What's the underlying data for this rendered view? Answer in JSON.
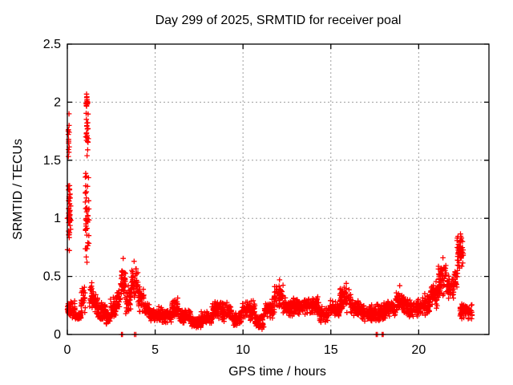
{
  "chart_data": {
    "type": "scatter",
    "title": "Day 299 of 2025, SRMTID for receiver poal",
    "xlabel": "GPS time / hours",
    "ylabel": "SRMTID / TECUs",
    "xlim": [
      0,
      24
    ],
    "ylim": [
      0,
      2.5
    ],
    "xtick_values": [
      0,
      5,
      10,
      15,
      20
    ],
    "xtick_labels": [
      "0",
      "5",
      "10",
      "15",
      "20"
    ],
    "ytick_values": [
      0,
      0.5,
      1,
      1.5,
      2,
      2.5
    ],
    "ytick_labels": [
      "0",
      "0.5",
      "1",
      "1.5",
      "2",
      "2.5"
    ],
    "grid": true,
    "grid_color": "#9e9e9e",
    "marker": "plus",
    "marker_color": "#ff0000",
    "border_color": "#000000",
    "background": "#ffffff",
    "legend": "none",
    "seed": 2025299,
    "segments_format": [
      "t_start_hours",
      "t_end_hours",
      "v_min_TECUs",
      "v_max_TECUs",
      "n_points"
    ],
    "band_segments": [
      [
        0.05,
        0.13,
        0.72,
        1.38,
        22
      ],
      [
        0.05,
        0.12,
        1.4,
        1.92,
        10
      ],
      [
        0.13,
        0.2,
        0.78,
        1.3,
        14
      ],
      [
        0.07,
        0.14,
        0.93,
        1.1,
        12
      ],
      [
        1.02,
        1.24,
        0.55,
        1.45,
        42
      ],
      [
        1.04,
        1.2,
        1.45,
        1.95,
        22
      ],
      [
        1.06,
        1.17,
        1.93,
        2.06,
        12
      ],
      [
        0.0,
        0.45,
        0.13,
        0.3,
        55
      ],
      [
        0.45,
        0.78,
        0.11,
        0.2,
        38
      ],
      [
        0.78,
        1.02,
        0.17,
        0.42,
        30
      ],
      [
        1.26,
        1.5,
        0.22,
        0.45,
        26
      ],
      [
        1.5,
        1.72,
        0.16,
        0.35,
        26
      ],
      [
        1.72,
        2.2,
        0.12,
        0.28,
        62
      ],
      [
        2.2,
        2.45,
        0.08,
        0.2,
        30
      ],
      [
        2.45,
        2.78,
        0.14,
        0.33,
        40
      ],
      [
        2.78,
        3.02,
        0.18,
        0.4,
        30
      ],
      [
        3.02,
        3.32,
        0.28,
        0.62,
        45
      ],
      [
        3.32,
        3.62,
        0.15,
        0.45,
        38
      ],
      [
        3.62,
        4.02,
        0.28,
        0.6,
        45
      ],
      [
        4.02,
        4.38,
        0.16,
        0.42,
        40
      ],
      [
        4.38,
        4.68,
        0.13,
        0.3,
        36
      ],
      [
        4.68,
        5.42,
        0.1,
        0.24,
        85
      ],
      [
        5.42,
        5.92,
        0.1,
        0.22,
        58
      ],
      [
        5.92,
        6.38,
        0.13,
        0.32,
        52
      ],
      [
        6.38,
        7.02,
        0.09,
        0.22,
        72
      ],
      [
        7.02,
        7.62,
        0.05,
        0.16,
        66
      ],
      [
        7.62,
        8.22,
        0.08,
        0.2,
        66
      ],
      [
        8.22,
        8.78,
        0.12,
        0.3,
        62
      ],
      [
        8.78,
        9.38,
        0.1,
        0.28,
        66
      ],
      [
        9.38,
        9.92,
        0.06,
        0.2,
        60
      ],
      [
        9.92,
        10.68,
        0.12,
        0.3,
        82
      ],
      [
        10.68,
        11.22,
        0.04,
        0.18,
        60
      ],
      [
        11.22,
        11.78,
        0.12,
        0.32,
        62
      ],
      [
        11.78,
        12.28,
        0.2,
        0.45,
        55
      ],
      [
        12.28,
        13.02,
        0.15,
        0.33,
        80
      ],
      [
        13.02,
        14.32,
        0.16,
        0.33,
        140
      ],
      [
        14.32,
        14.88,
        0.1,
        0.25,
        62
      ],
      [
        14.88,
        15.52,
        0.14,
        0.3,
        70
      ],
      [
        15.52,
        16.18,
        0.18,
        0.42,
        72
      ],
      [
        16.18,
        16.88,
        0.13,
        0.3,
        76
      ],
      [
        16.88,
        17.58,
        0.1,
        0.26,
        76
      ],
      [
        17.58,
        18.12,
        0.1,
        0.28,
        60
      ],
      [
        18.12,
        18.68,
        0.13,
        0.3,
        60
      ],
      [
        18.68,
        19.18,
        0.18,
        0.4,
        56
      ],
      [
        19.18,
        20.12,
        0.14,
        0.32,
        100
      ],
      [
        20.12,
        20.68,
        0.16,
        0.38,
        62
      ],
      [
        20.68,
        21.12,
        0.22,
        0.48,
        52
      ],
      [
        21.12,
        21.58,
        0.3,
        0.64,
        50
      ],
      [
        21.58,
        22.02,
        0.28,
        0.52,
        46
      ],
      [
        22.02,
        22.22,
        0.34,
        0.58,
        20
      ],
      [
        22.18,
        22.55,
        0.55,
        0.86,
        55
      ],
      [
        22.35,
        23.05,
        0.12,
        0.28,
        72
      ]
    ],
    "zero_points": [
      3.08,
      3.14,
      3.82,
      3.9,
      17.58,
      17.65,
      17.92,
      17.98
    ],
    "extra_points": [
      [
        0.0,
        1.0
      ],
      [
        0.01,
        0.73
      ],
      [
        0.095,
        1.9
      ],
      [
        0.1,
        1.8
      ],
      [
        0.105,
        1.74
      ],
      [
        1.095,
        2.07
      ],
      [
        1.105,
        2.04
      ],
      [
        1.11,
        2.01
      ],
      [
        1.12,
        1.99
      ],
      [
        3.18,
        0.655
      ],
      [
        3.8,
        0.63
      ],
      [
        12.08,
        0.47
      ],
      [
        15.88,
        0.44
      ],
      [
        18.92,
        0.42
      ],
      [
        21.38,
        0.66
      ],
      [
        22.38,
        0.865
      ],
      [
        22.4,
        0.845
      ],
      [
        22.44,
        0.83
      ]
    ]
  }
}
